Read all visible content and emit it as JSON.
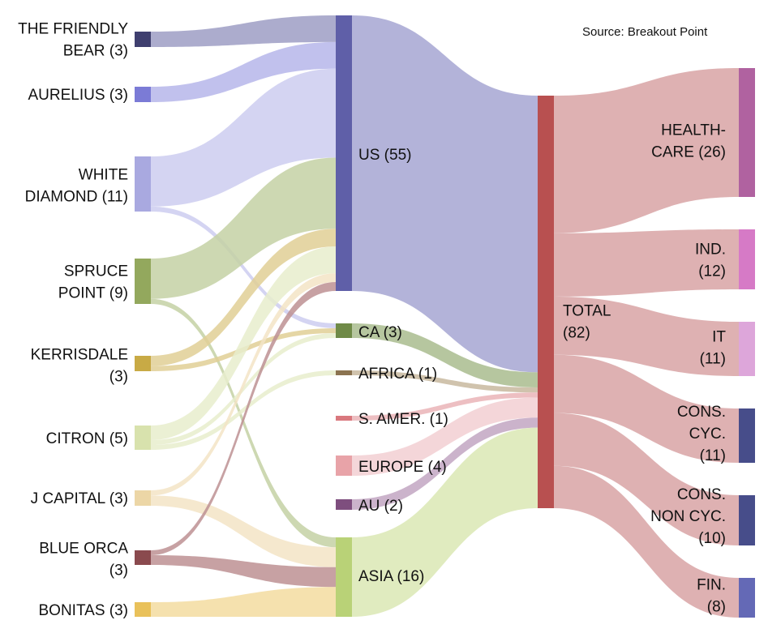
{
  "source_note": "Source: Breakout Point",
  "left_nodes": [
    {
      "id": "tfb",
      "lines": [
        "THE FRIENDLY",
        "BEAR (3)"
      ],
      "color": "#3f3f6f"
    },
    {
      "id": "aur",
      "lines": [
        "AURELIUS (3)"
      ],
      "color": "#7b7bd6"
    },
    {
      "id": "wd",
      "lines": [
        "WHITE",
        "DIAMOND (11)"
      ],
      "color": "#a9a9e0"
    },
    {
      "id": "sp",
      "lines": [
        "SPRUCE",
        "POINT (9)"
      ],
      "color": "#93a85d"
    },
    {
      "id": "ker",
      "lines": [
        "KERRISDALE",
        "(3)"
      ],
      "color": "#c8aa45"
    },
    {
      "id": "cit",
      "lines": [
        "CITRON (5)"
      ],
      "color": "#d8e2ad"
    },
    {
      "id": "jc",
      "lines": [
        "J CAPITAL (3)"
      ],
      "color": "#ecd6a6"
    },
    {
      "id": "bo",
      "lines": [
        "BLUE ORCA",
        "(3)"
      ],
      "color": "#8a4a4e"
    },
    {
      "id": "bon",
      "lines": [
        "BONITAS (3)"
      ],
      "color": "#e9c15a"
    }
  ],
  "mid_nodes": [
    {
      "id": "us",
      "label": "US (55)",
      "color": "#5f5fa8"
    },
    {
      "id": "ca",
      "label": "CA (3)",
      "color": "#6f8a47"
    },
    {
      "id": "af",
      "label": "AFRICA (1)",
      "color": "#8b7350"
    },
    {
      "id": "sam",
      "label": "S. AMER. (1)",
      "color": "#d9787e"
    },
    {
      "id": "eu",
      "label": "EUROPE (4)",
      "color": "#e8a3a8"
    },
    {
      "id": "au",
      "label": "AU (2)",
      "color": "#7e4e7e"
    },
    {
      "id": "asia",
      "label": "ASIA (16)",
      "color": "#b9d277"
    }
  ],
  "total_node": {
    "id": "total",
    "lines": [
      "TOTAL",
      "(82)"
    ],
    "color": "#b85050"
  },
  "right_nodes": [
    {
      "id": "hc",
      "lines": [
        "HEALTH-",
        "CARE (26)"
      ],
      "color": "#b062a0"
    },
    {
      "id": "ind",
      "lines": [
        "IND.",
        "(12)"
      ],
      "color": "#d67ac6"
    },
    {
      "id": "it",
      "lines": [
        "IT",
        "(11)"
      ],
      "color": "#dda6da"
    },
    {
      "id": "cc",
      "lines": [
        "CONS.",
        "CYC.",
        "(11)"
      ],
      "color": "#474d8a"
    },
    {
      "id": "cnc",
      "lines": [
        "CONS.",
        "NON CYC.",
        "(10)"
      ],
      "color": "#474d8a"
    },
    {
      "id": "fin",
      "lines": [
        "FIN.",
        "(8)"
      ],
      "color": "#6469b6"
    }
  ],
  "flows_left_mid": [
    {
      "from": "tfb",
      "to": "us",
      "value": 3,
      "color": "#9d9dc4"
    },
    {
      "from": "aur",
      "to": "us",
      "value": 3,
      "color": "#b6b6ea"
    },
    {
      "from": "wd",
      "to": "us",
      "value": 10,
      "color": "#cdcdf0"
    },
    {
      "from": "wd",
      "to": "ca",
      "value": 1,
      "color": "#cdcdf0"
    },
    {
      "from": "sp",
      "to": "us",
      "value": 8,
      "color": "#c4d1a5"
    },
    {
      "from": "sp",
      "to": "asia",
      "value": 1,
      "color": "#c4d1a5"
    },
    {
      "from": "ker",
      "to": "us",
      "value": 2,
      "color": "#e0cf95"
    },
    {
      "from": "ker",
      "to": "ca",
      "value": 1,
      "color": "#e0cf95"
    },
    {
      "from": "cit",
      "to": "us",
      "value": 3,
      "color": "#e7edcc"
    },
    {
      "from": "cit",
      "to": "ca",
      "value": 1,
      "color": "#e7edcc"
    },
    {
      "from": "cit",
      "to": "af",
      "value": 1,
      "color": "#e7edcc"
    },
    {
      "from": "jc",
      "to": "us",
      "value": 1,
      "color": "#f3e4c6"
    },
    {
      "from": "jc",
      "to": "asia",
      "value": 2,
      "color": "#f3e4c6"
    },
    {
      "from": "bo",
      "to": "us",
      "value": 1,
      "color": "#bd9193"
    },
    {
      "from": "bo",
      "to": "asia",
      "value": 2,
      "color": "#bd9193"
    },
    {
      "from": "bon",
      "to": "asia",
      "value": 3,
      "color": "#f3dca0"
    }
  ],
  "flows_mid_total": [
    {
      "from": "us",
      "to": "total",
      "value": 55,
      "color": "#a6a6d2"
    },
    {
      "from": "ca",
      "to": "total",
      "value": 3,
      "color": "#a9bc8e"
    },
    {
      "from": "af",
      "to": "total",
      "value": 1,
      "color": "#c8b89f"
    },
    {
      "from": "sam",
      "to": "total",
      "value": 1,
      "color": "#eab4b7"
    },
    {
      "from": "eu",
      "to": "total",
      "value": 4,
      "color": "#f2cfd2"
    },
    {
      "from": "au",
      "to": "total",
      "value": 2,
      "color": "#c2a6c2"
    },
    {
      "from": "asia",
      "to": "total",
      "value": 16,
      "color": "#dbe7b4"
    }
  ],
  "flows_total_right": [
    {
      "from": "total",
      "to": "hc",
      "value": 26,
      "color": "#d8a3a5"
    },
    {
      "from": "total",
      "to": "ind",
      "value": 12,
      "color": "#d8a3a5"
    },
    {
      "from": "total",
      "to": "it",
      "value": 11,
      "color": "#d8a3a5"
    },
    {
      "from": "total",
      "to": "cc",
      "value": 11,
      "color": "#d8a3a5"
    },
    {
      "from": "total",
      "to": "cnc",
      "value": 10,
      "color": "#d8a3a5"
    },
    {
      "from": "total",
      "to": "fin",
      "value": 8,
      "color": "#d8a3a5"
    }
  ]
}
